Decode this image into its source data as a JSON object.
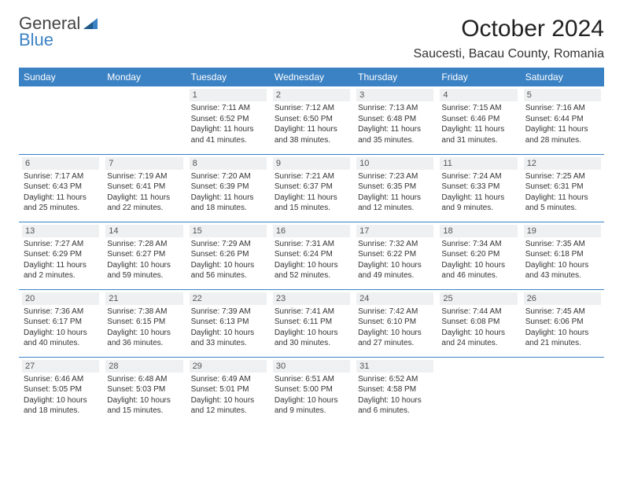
{
  "colors": {
    "header_bg": "#3b82c4",
    "header_text": "#ffffff",
    "daynum_bg": "#eef0f1",
    "daynum_text": "#555555",
    "body_text": "#333333",
    "row_border": "#3b82c4",
    "logo_gray": "#444444",
    "logo_blue": "#3b82c4",
    "page_bg": "#ffffff"
  },
  "typography": {
    "font_family": "Arial, Helvetica, sans-serif",
    "month_title_size": 30,
    "location_size": 16,
    "weekday_size": 12,
    "daynum_size": 11,
    "content_size": 10
  },
  "logo": {
    "line1": "General",
    "line2": "Blue"
  },
  "header": {
    "month_title": "October 2024",
    "location": "Saucesti, Bacau County, Romania"
  },
  "weekdays": [
    "Sunday",
    "Monday",
    "Tuesday",
    "Wednesday",
    "Thursday",
    "Friday",
    "Saturday"
  ],
  "grid": {
    "columns": 7,
    "rows": 5,
    "first_day_column_index": 2
  },
  "days": [
    {
      "num": 1,
      "sunrise": "Sunrise: 7:11 AM",
      "sunset": "Sunset: 6:52 PM",
      "daylight": "Daylight: 11 hours and 41 minutes."
    },
    {
      "num": 2,
      "sunrise": "Sunrise: 7:12 AM",
      "sunset": "Sunset: 6:50 PM",
      "daylight": "Daylight: 11 hours and 38 minutes."
    },
    {
      "num": 3,
      "sunrise": "Sunrise: 7:13 AM",
      "sunset": "Sunset: 6:48 PM",
      "daylight": "Daylight: 11 hours and 35 minutes."
    },
    {
      "num": 4,
      "sunrise": "Sunrise: 7:15 AM",
      "sunset": "Sunset: 6:46 PM",
      "daylight": "Daylight: 11 hours and 31 minutes."
    },
    {
      "num": 5,
      "sunrise": "Sunrise: 7:16 AM",
      "sunset": "Sunset: 6:44 PM",
      "daylight": "Daylight: 11 hours and 28 minutes."
    },
    {
      "num": 6,
      "sunrise": "Sunrise: 7:17 AM",
      "sunset": "Sunset: 6:43 PM",
      "daylight": "Daylight: 11 hours and 25 minutes."
    },
    {
      "num": 7,
      "sunrise": "Sunrise: 7:19 AM",
      "sunset": "Sunset: 6:41 PM",
      "daylight": "Daylight: 11 hours and 22 minutes."
    },
    {
      "num": 8,
      "sunrise": "Sunrise: 7:20 AM",
      "sunset": "Sunset: 6:39 PM",
      "daylight": "Daylight: 11 hours and 18 minutes."
    },
    {
      "num": 9,
      "sunrise": "Sunrise: 7:21 AM",
      "sunset": "Sunset: 6:37 PM",
      "daylight": "Daylight: 11 hours and 15 minutes."
    },
    {
      "num": 10,
      "sunrise": "Sunrise: 7:23 AM",
      "sunset": "Sunset: 6:35 PM",
      "daylight": "Daylight: 11 hours and 12 minutes."
    },
    {
      "num": 11,
      "sunrise": "Sunrise: 7:24 AM",
      "sunset": "Sunset: 6:33 PM",
      "daylight": "Daylight: 11 hours and 9 minutes."
    },
    {
      "num": 12,
      "sunrise": "Sunrise: 7:25 AM",
      "sunset": "Sunset: 6:31 PM",
      "daylight": "Daylight: 11 hours and 5 minutes."
    },
    {
      "num": 13,
      "sunrise": "Sunrise: 7:27 AM",
      "sunset": "Sunset: 6:29 PM",
      "daylight": "Daylight: 11 hours and 2 minutes."
    },
    {
      "num": 14,
      "sunrise": "Sunrise: 7:28 AM",
      "sunset": "Sunset: 6:27 PM",
      "daylight": "Daylight: 10 hours and 59 minutes."
    },
    {
      "num": 15,
      "sunrise": "Sunrise: 7:29 AM",
      "sunset": "Sunset: 6:26 PM",
      "daylight": "Daylight: 10 hours and 56 minutes."
    },
    {
      "num": 16,
      "sunrise": "Sunrise: 7:31 AM",
      "sunset": "Sunset: 6:24 PM",
      "daylight": "Daylight: 10 hours and 52 minutes."
    },
    {
      "num": 17,
      "sunrise": "Sunrise: 7:32 AM",
      "sunset": "Sunset: 6:22 PM",
      "daylight": "Daylight: 10 hours and 49 minutes."
    },
    {
      "num": 18,
      "sunrise": "Sunrise: 7:34 AM",
      "sunset": "Sunset: 6:20 PM",
      "daylight": "Daylight: 10 hours and 46 minutes."
    },
    {
      "num": 19,
      "sunrise": "Sunrise: 7:35 AM",
      "sunset": "Sunset: 6:18 PM",
      "daylight": "Daylight: 10 hours and 43 minutes."
    },
    {
      "num": 20,
      "sunrise": "Sunrise: 7:36 AM",
      "sunset": "Sunset: 6:17 PM",
      "daylight": "Daylight: 10 hours and 40 minutes."
    },
    {
      "num": 21,
      "sunrise": "Sunrise: 7:38 AM",
      "sunset": "Sunset: 6:15 PM",
      "daylight": "Daylight: 10 hours and 36 minutes."
    },
    {
      "num": 22,
      "sunrise": "Sunrise: 7:39 AM",
      "sunset": "Sunset: 6:13 PM",
      "daylight": "Daylight: 10 hours and 33 minutes."
    },
    {
      "num": 23,
      "sunrise": "Sunrise: 7:41 AM",
      "sunset": "Sunset: 6:11 PM",
      "daylight": "Daylight: 10 hours and 30 minutes."
    },
    {
      "num": 24,
      "sunrise": "Sunrise: 7:42 AM",
      "sunset": "Sunset: 6:10 PM",
      "daylight": "Daylight: 10 hours and 27 minutes."
    },
    {
      "num": 25,
      "sunrise": "Sunrise: 7:44 AM",
      "sunset": "Sunset: 6:08 PM",
      "daylight": "Daylight: 10 hours and 24 minutes."
    },
    {
      "num": 26,
      "sunrise": "Sunrise: 7:45 AM",
      "sunset": "Sunset: 6:06 PM",
      "daylight": "Daylight: 10 hours and 21 minutes."
    },
    {
      "num": 27,
      "sunrise": "Sunrise: 6:46 AM",
      "sunset": "Sunset: 5:05 PM",
      "daylight": "Daylight: 10 hours and 18 minutes."
    },
    {
      "num": 28,
      "sunrise": "Sunrise: 6:48 AM",
      "sunset": "Sunset: 5:03 PM",
      "daylight": "Daylight: 10 hours and 15 minutes."
    },
    {
      "num": 29,
      "sunrise": "Sunrise: 6:49 AM",
      "sunset": "Sunset: 5:01 PM",
      "daylight": "Daylight: 10 hours and 12 minutes."
    },
    {
      "num": 30,
      "sunrise": "Sunrise: 6:51 AM",
      "sunset": "Sunset: 5:00 PM",
      "daylight": "Daylight: 10 hours and 9 minutes."
    },
    {
      "num": 31,
      "sunrise": "Sunrise: 6:52 AM",
      "sunset": "Sunset: 4:58 PM",
      "daylight": "Daylight: 10 hours and 6 minutes."
    }
  ]
}
